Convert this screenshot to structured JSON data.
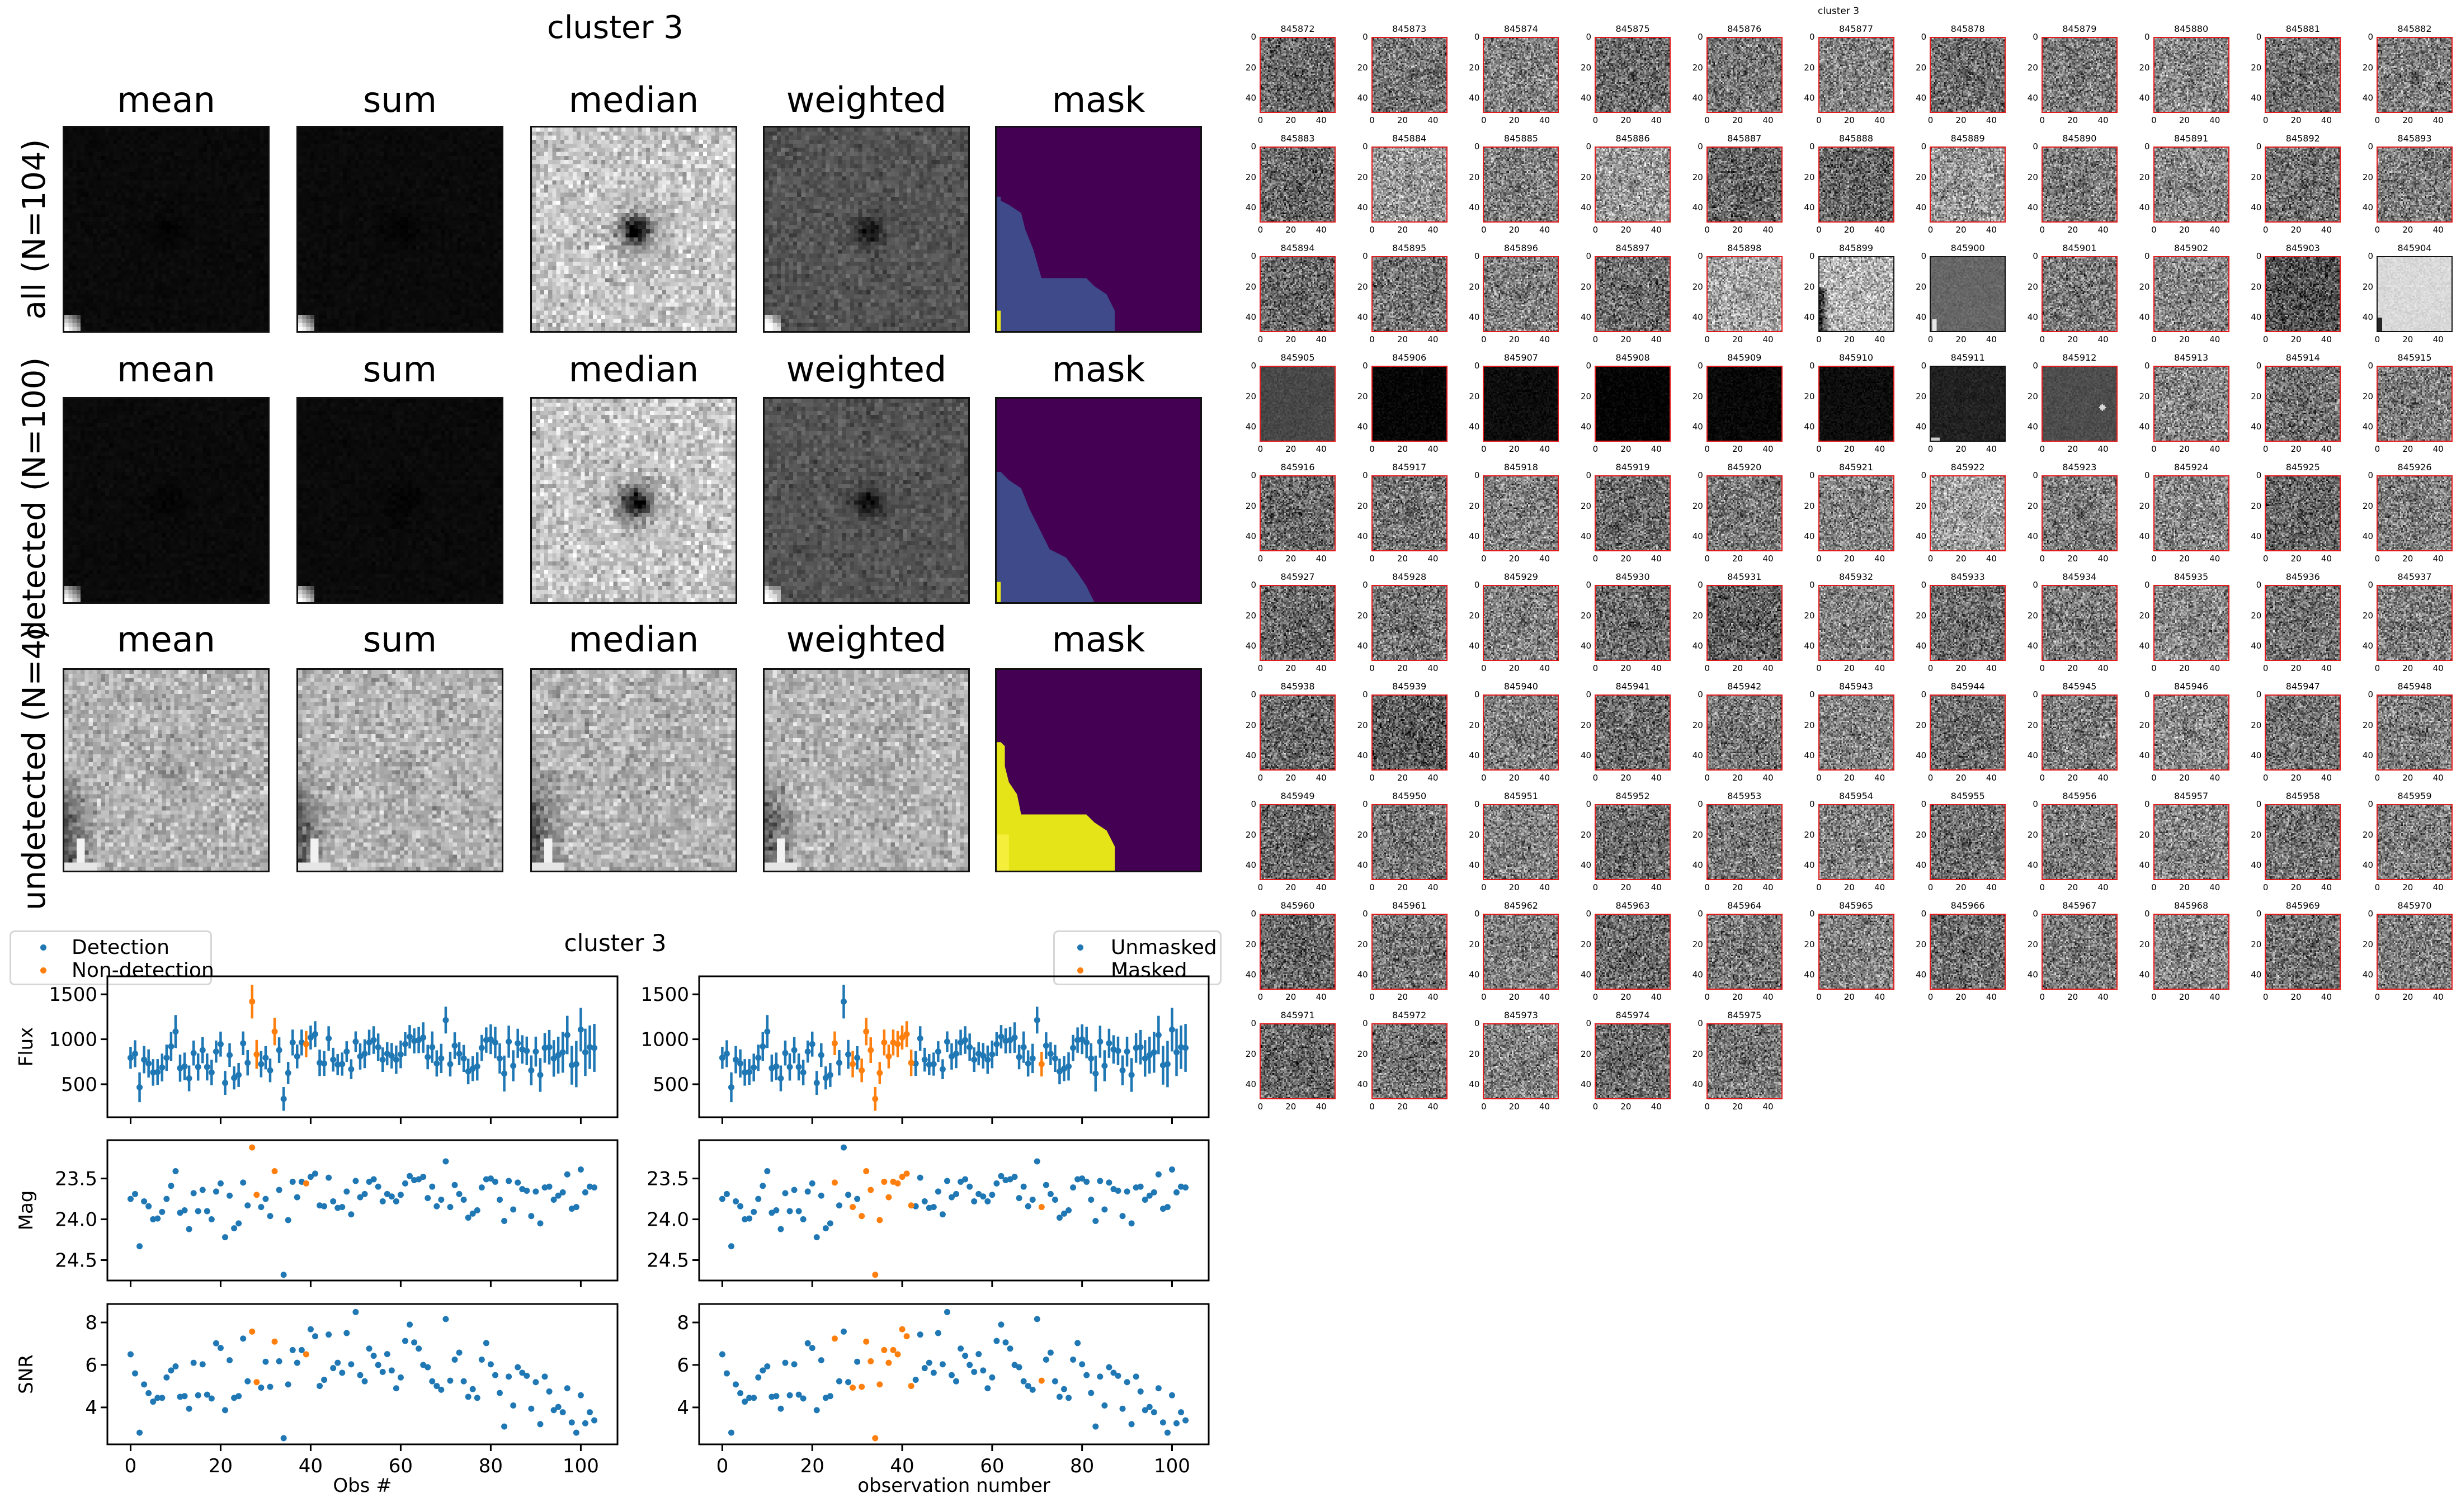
{
  "composites": {
    "title": "cluster 3",
    "column_titles": [
      "mean",
      "sum",
      "median",
      "weighted",
      "mask"
    ],
    "rows": [
      {
        "label": "all (N=104)"
      },
      {
        "label": "detected (N=100)"
      },
      {
        "label": "undetected (N=4)"
      }
    ],
    "mask_colors": {
      "zero": "#440154",
      "mid": "#3e4a89",
      "high": "#e5e419"
    }
  },
  "thumbnails": {
    "overlap_title": "cluster 3",
    "ticks": [
      "0",
      "20",
      "40"
    ],
    "detected_border": "#e31a1c",
    "nondetected_border": "#111111",
    "ids": [
      "845872",
      "845873",
      "845874",
      "845875",
      "845876",
      "845877",
      "845878",
      "845879",
      "845880",
      "845881",
      "845882",
      "845883",
      "845884",
      "845885",
      "845886",
      "845887",
      "845888",
      "845889",
      "845890",
      "845891",
      "845892",
      "845893",
      "845894",
      "845895",
      "845896",
      "845897",
      "845898",
      "845899",
      "845900",
      "845901",
      "845902",
      "845903",
      "845904",
      "845905",
      "845906",
      "845907",
      "845908",
      "845909",
      "845910",
      "845911",
      "845912",
      "845913",
      "845914",
      "845915",
      "845916",
      "845917",
      "845918",
      "845919",
      "845920",
      "845921",
      "845922",
      "845923",
      "845924",
      "845925",
      "845926",
      "845927",
      "845928",
      "845929",
      "845930",
      "845931",
      "845932",
      "845933",
      "845934",
      "845935",
      "845936",
      "845937",
      "845938",
      "845939",
      "845940",
      "845941",
      "845942",
      "845943",
      "845944",
      "845945",
      "845946",
      "845947",
      "845948",
      "845949",
      "845950",
      "845951",
      "845952",
      "845953",
      "845954",
      "845955",
      "845956",
      "845957",
      "845958",
      "845959",
      "845960",
      "845961",
      "845962",
      "845963",
      "845964",
      "845965",
      "845966",
      "845967",
      "845968",
      "845969",
      "845970",
      "845971",
      "845972",
      "845973",
      "845974",
      "845975"
    ],
    "nondetected_ids": [
      "845899",
      "845900",
      "845904",
      "845911"
    ]
  },
  "chart_data": {
    "type": "scatter",
    "title": "cluster 3",
    "colors": {
      "primary": "#1f77b4",
      "secondary": "#ff7f0e"
    },
    "legends": {
      "left": [
        "Detection",
        "Non-detection"
      ],
      "right": [
        "Unmasked",
        "Masked"
      ]
    },
    "xlabel_left": "Obs #",
    "xlabel_right": "observation number",
    "xlim": [
      -5.15,
      108.15
    ],
    "xticks": [
      0,
      20,
      40,
      60,
      80,
      100
    ],
    "xtick_labels": [
      "0",
      "20",
      "40",
      "60",
      "80",
      "100"
    ],
    "panels": {
      "flux": {
        "ylabel": "Flux",
        "ylim": [
          133,
          1700
        ],
        "yticks": [
          500,
          1000,
          1500
        ],
        "ytick_labels": [
          "500",
          "1000",
          "1500"
        ],
        "error_bars": "flux / SNR"
      },
      "mag": {
        "ylabel": "Mag",
        "ylim": [
          24.75,
          23.03
        ],
        "inverted": true,
        "yticks": [
          23.5,
          24.0,
          24.5
        ],
        "ytick_labels": [
          "23.5",
          "24.0",
          "24.5"
        ]
      },
      "snr": {
        "ylabel": "SNR",
        "ylim": [
          2.26,
          8.87
        ],
        "yticks": [
          4,
          6,
          8
        ],
        "ytick_labels": [
          "4",
          "6",
          "8"
        ]
      }
    },
    "x": [
      0,
      1,
      2,
      3,
      4,
      5,
      6,
      7,
      8,
      9,
      10,
      11,
      12,
      13,
      14,
      15,
      16,
      17,
      18,
      19,
      20,
      21,
      22,
      23,
      24,
      25,
      26,
      27,
      28,
      29,
      30,
      31,
      32,
      33,
      34,
      35,
      36,
      37,
      38,
      39,
      40,
      41,
      42,
      43,
      44,
      45,
      46,
      47,
      48,
      49,
      50,
      51,
      52,
      53,
      54,
      55,
      56,
      57,
      58,
      59,
      60,
      61,
      62,
      63,
      64,
      65,
      66,
      67,
      68,
      69,
      70,
      71,
      72,
      73,
      74,
      75,
      76,
      77,
      78,
      79,
      80,
      81,
      82,
      83,
      84,
      85,
      86,
      87,
      88,
      89,
      90,
      91,
      92,
      93,
      94,
      95,
      96,
      97,
      98,
      99,
      100,
      101,
      102,
      103
    ],
    "flux": [
      794,
      839,
      466,
      773,
      731,
      631,
      636,
      686,
      794,
      920,
      1086,
      679,
      698,
      565,
      847,
      692,
      879,
      692,
      631,
      863,
      946,
      515,
      824,
      570,
      603,
      955,
      738,
      1419,
      832,
      724,
      794,
      654,
      1086,
      879,
      337,
      625,
      964,
      809,
      964,
      946,
      1019,
      1057,
      738,
      731,
      1009,
      773,
      718,
      724,
      863,
      667,
      973,
      809,
      839,
      964,
      991,
      912,
      773,
      839,
      817,
      773,
      832,
      946,
      1028,
      982,
      991,
      1019,
      802,
      912,
      731,
      787,
      1213,
      724,
      929,
      839,
      787,
      642,
      673,
      698,
      904,
      991,
      1000,
      964,
      787,
      619,
      973,
      705,
      955,
      887,
      871,
      654,
      863,
      603,
      904,
      912,
      787,
      824,
      855,
      1047,
      711,
      724,
      1107,
      855,
      912,
      904
    ],
    "mag": [
      23.75,
      23.69,
      24.33,
      23.78,
      23.84,
      24.0,
      23.99,
      23.91,
      23.75,
      23.59,
      23.41,
      23.92,
      23.89,
      24.12,
      23.68,
      23.9,
      23.64,
      23.9,
      24.0,
      23.66,
      23.56,
      24.22,
      23.71,
      24.11,
      24.05,
      23.55,
      23.83,
      23.12,
      23.7,
      23.85,
      23.75,
      23.96,
      23.41,
      23.64,
      24.68,
      24.01,
      23.54,
      23.73,
      23.54,
      23.56,
      23.48,
      23.44,
      23.83,
      23.84,
      23.49,
      23.78,
      23.86,
      23.85,
      23.66,
      23.94,
      23.53,
      23.73,
      23.69,
      23.54,
      23.51,
      23.6,
      23.78,
      23.69,
      23.72,
      23.78,
      23.7,
      23.56,
      23.47,
      23.52,
      23.51,
      23.48,
      23.74,
      23.6,
      23.84,
      23.76,
      23.29,
      23.85,
      23.58,
      23.69,
      23.76,
      23.98,
      23.93,
      23.89,
      23.61,
      23.51,
      23.5,
      23.54,
      23.76,
      24.02,
      23.53,
      23.88,
      23.55,
      23.63,
      23.65,
      23.96,
      23.66,
      24.05,
      23.61,
      23.6,
      23.76,
      23.71,
      23.67,
      23.45,
      23.87,
      23.85,
      23.39,
      23.67,
      23.6,
      23.61
    ],
    "snr": [
      6.5,
      5.6,
      2.81,
      5.08,
      4.67,
      4.27,
      4.45,
      4.45,
      5.41,
      5.74,
      5.93,
      4.5,
      4.53,
      3.94,
      6.1,
      4.57,
      6.03,
      4.6,
      4.42,
      7.02,
      6.8,
      3.87,
      6.22,
      4.45,
      4.53,
      7.24,
      5.23,
      7.57,
      5.19,
      4.93,
      6.15,
      4.97,
      7.1,
      6.17,
      2.55,
      5.08,
      6.7,
      6.1,
      6.7,
      6.5,
      7.68,
      7.35,
      5.01,
      5.3,
      7.43,
      5.85,
      6.1,
      5.63,
      7.5,
      6.03,
      8.49,
      5.52,
      5.23,
      6.77,
      6.43,
      6.0,
      5.67,
      6.51,
      5.74,
      4.9,
      5.41,
      7.13,
      7.9,
      7.06,
      6.77,
      6.0,
      5.89,
      5.23,
      5.01,
      4.83,
      8.16,
      5.26,
      6.25,
      6.58,
      5.23,
      4.5,
      4.86,
      4.45,
      6.25,
      7.03,
      6.03,
      5.52,
      4.68,
      3.1,
      5.45,
      4.09,
      5.89,
      5.63,
      5.49,
      3.94,
      5.19,
      3.21,
      5.45,
      4.75,
      3.87,
      4.02,
      3.77,
      4.9,
      3.29,
      2.81,
      4.57,
      3.25,
      3.77,
      3.39
    ],
    "nondetected_indices": [
      27,
      28,
      32,
      39
    ],
    "masked_indices": [
      25,
      29,
      31,
      32,
      33,
      34,
      35,
      36,
      37,
      38,
      39,
      40,
      41,
      42,
      71
    ]
  }
}
